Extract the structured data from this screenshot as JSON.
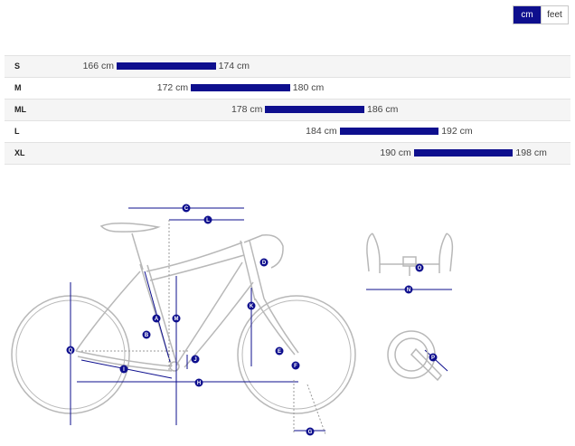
{
  "units": {
    "cm": "cm",
    "feet": "feet",
    "active": "cm"
  },
  "colors": {
    "accent": "#0e0f8e",
    "bike_outline": "#b8b8b8",
    "row_alt": "#f5f5f5"
  },
  "sizes": [
    {
      "label": "S",
      "min": "166 cm",
      "max": "174 cm",
      "min_value": 166,
      "max_value": 174
    },
    {
      "label": "M",
      "min": "172 cm",
      "max": "180 cm",
      "min_value": 172,
      "max_value": 180
    },
    {
      "label": "ML",
      "min": "178 cm",
      "max": "186 cm",
      "min_value": 178,
      "max_value": 186
    },
    {
      "label": "L",
      "min": "184 cm",
      "max": "192 cm",
      "min_value": 184,
      "max_value": 192
    },
    {
      "label": "XL",
      "min": "190 cm",
      "max": "198 cm",
      "min_value": 190,
      "max_value": 198
    }
  ],
  "geometry_markers": {
    "A": "A",
    "B": "B",
    "C": "C",
    "D": "D",
    "E": "E",
    "F": "F",
    "G": "G",
    "H": "H",
    "I": "I",
    "J": "J",
    "K": "K",
    "L": "L",
    "M": "M",
    "N": "N",
    "O": "O",
    "P": "P",
    "Q": "Q"
  }
}
